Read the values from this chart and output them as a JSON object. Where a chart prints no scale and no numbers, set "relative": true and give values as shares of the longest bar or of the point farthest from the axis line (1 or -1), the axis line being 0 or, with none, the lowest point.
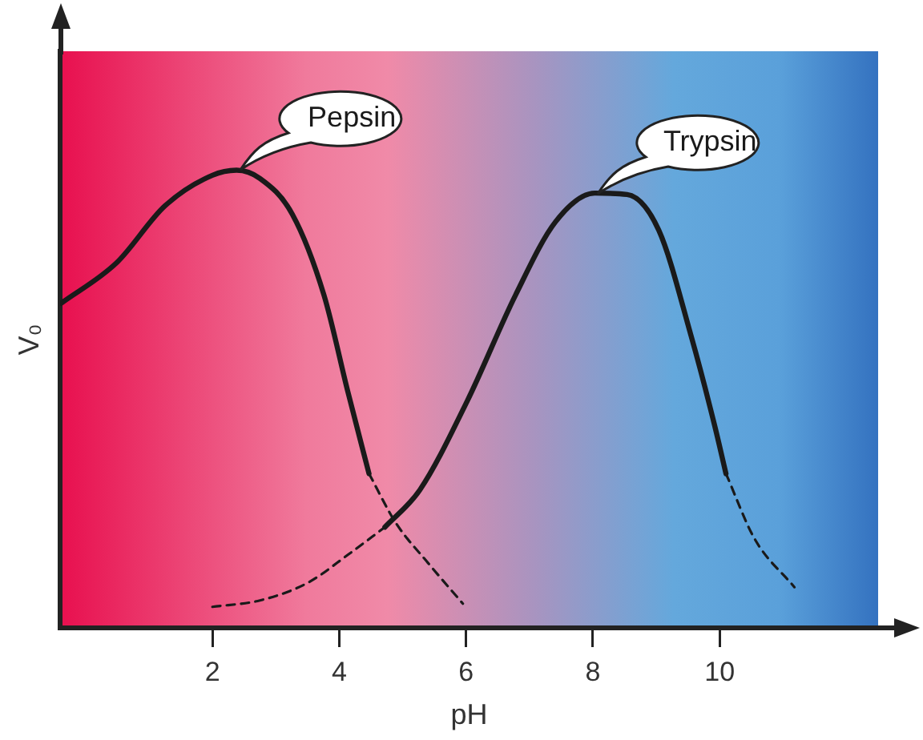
{
  "chart_data": {
    "type": "line",
    "xlabel": "pH",
    "ylabel": "V₀",
    "relative": true,
    "xlim": [
      -0.4,
      12.5
    ],
    "xticks": [
      2,
      4,
      6,
      8,
      10
    ],
    "grid": false,
    "legend": false,
    "marker": "none",
    "series": [
      {
        "name": "Pepsin",
        "color": "#1a1a1a",
        "line_style": "solid",
        "x": [
          -0.39,
          0.49,
          1.25,
          2,
          2.38,
          2.75,
          3.26,
          3.76,
          4.14,
          4.47
        ],
        "values": [
          0.709,
          0.798,
          0.922,
          0.989,
          1,
          0.982,
          0.904,
          0.727,
          0.514,
          0.337
        ]
      },
      {
        "color": "#1a1a1a",
        "line_style": "dashed",
        "x": [
          4.47,
          4.89,
          5.4,
          5.95
        ],
        "values": [
          0.337,
          0.23,
          0.142,
          0.053
        ]
      },
      {
        "color": "#1a1a1a",
        "line_style": "dashed",
        "x": [
          2,
          2.75,
          3.51,
          4.14,
          4.72
        ],
        "values": [
          0.046,
          0.06,
          0.099,
          0.16,
          0.22
        ]
      },
      {
        "name": "Trypsin",
        "color": "#1a1a1a",
        "line_style": "solid",
        "x": [
          4.72,
          5.27,
          6.02,
          6.78,
          7.41,
          8.03,
          8.54,
          9.04,
          9.55,
          9.92,
          10.1
        ],
        "values": [
          0.22,
          0.301,
          0.496,
          0.727,
          0.887,
          0.95,
          0.947,
          0.869,
          0.638,
          0.443,
          0.337
        ]
      },
      {
        "color": "#1a1a1a",
        "line_style": "dashed",
        "x": [
          10.1,
          10.55,
          11.18
        ],
        "values": [
          0.337,
          0.195,
          0.089
        ]
      }
    ]
  }
}
